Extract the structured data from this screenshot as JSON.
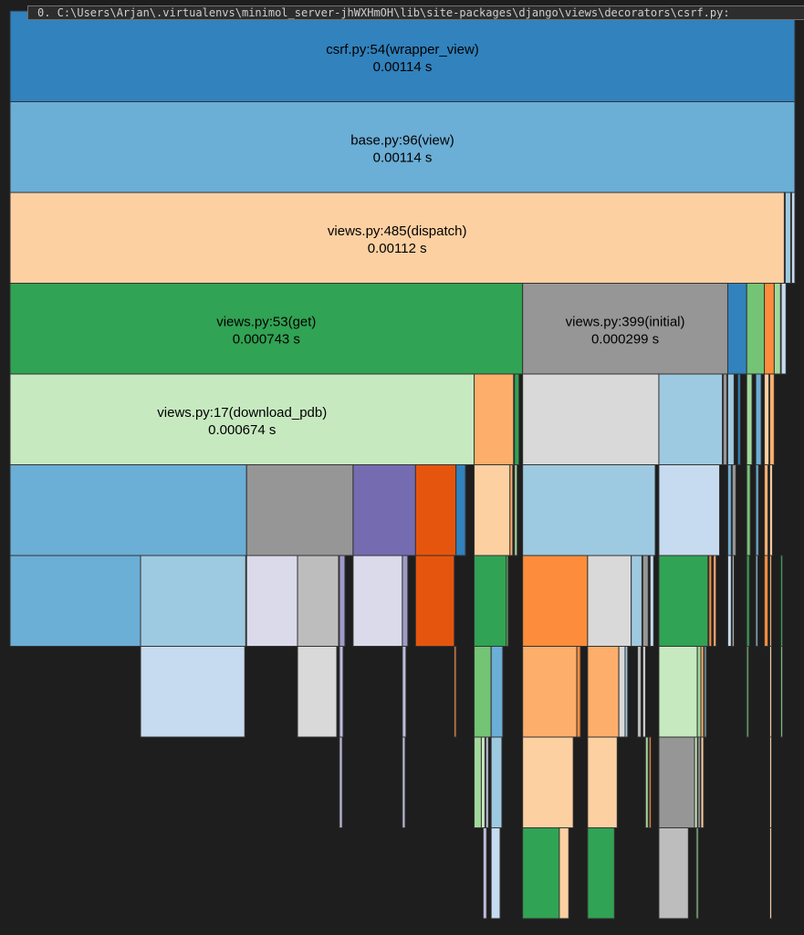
{
  "path_bar": {
    "text": "0. C:\\Users\\Arjan\\.virtualenvs\\minimol_server-jhWXHmOH\\lib\\site-packages\\django\\views\\decorators\\csrf.py:"
  },
  "colors": {
    "background": "#1e1e1e",
    "border": "#333333"
  },
  "chart_data": {
    "type": "icicle",
    "unit": "s",
    "levels": [
      [
        {
          "start": 0,
          "end": 1,
          "name": "csrf.py:54(wrapper_view)",
          "value": "0.00114 s",
          "color": "#3182bd"
        }
      ],
      [
        {
          "start": 0,
          "end": 1,
          "name": "base.py:96(view)",
          "value": "0.00114 s",
          "color": "#6baed6"
        }
      ],
      [
        {
          "start": 0,
          "end": 0.9865,
          "name": "views.py:485(dispatch)",
          "value": "0.00112 s",
          "color": "#fdd0a2"
        },
        {
          "start": 0.9877,
          "end": 0.9947,
          "color": "#9ecae1"
        },
        {
          "start": 0.9958,
          "end": 1,
          "color": "#c6dbef"
        }
      ],
      [
        {
          "start": 0,
          "end": 0.6531,
          "name": "views.py:53(get)",
          "value": "0.000743 s",
          "color": "#31a354"
        },
        {
          "start": 0.6531,
          "end": 0.9145,
          "name": "views.py:399(initial)",
          "value": "0.000299 s",
          "color": "#969696"
        },
        {
          "start": 0.9145,
          "end": 0.9386,
          "color": "#3182bd"
        },
        {
          "start": 0.9386,
          "end": 0.9611,
          "color": "#74c476"
        },
        {
          "start": 0.9611,
          "end": 0.9737,
          "color": "#fd8d3c"
        },
        {
          "start": 0.9737,
          "end": 0.9817,
          "color": "#a1d99b"
        },
        {
          "start": 0.9826,
          "end": 0.9887,
          "color": "#c6dbef"
        }
      ],
      [
        {
          "start": 0,
          "end": 0.5913,
          "name": "views.py:17(download_pdb)",
          "value": "0.000674 s",
          "color": "#c7e9c0"
        },
        {
          "start": 0.5913,
          "end": 0.6416,
          "color": "#fdae6b"
        },
        {
          "start": 0.6428,
          "end": 0.6485,
          "color": "#31a354"
        },
        {
          "start": 0.6531,
          "end": 0.8267,
          "color": "#d9d9d9"
        },
        {
          "start": 0.8267,
          "end": 0.9076,
          "color": "#9ecae1"
        },
        {
          "start": 0.9087,
          "end": 0.9134,
          "color": "#969696"
        },
        {
          "start": 0.9145,
          "end": 0.9225,
          "color": "#9ecae1"
        },
        {
          "start": 0.9272,
          "end": 0.9306,
          "color": "#3182bd"
        },
        {
          "start": 0.9386,
          "end": 0.9454,
          "color": "#a1d99b"
        },
        {
          "start": 0.9502,
          "end": 0.9571,
          "color": "#6baed6"
        },
        {
          "start": 0.9611,
          "end": 0.9668,
          "color": "#fdd0a2"
        },
        {
          "start": 0.968,
          "end": 0.9737,
          "color": "#fdae6b"
        }
      ],
      [
        {
          "start": 0,
          "end": 0.3014,
          "color": "#6baed6"
        },
        {
          "start": 0.3014,
          "end": 0.4371,
          "color": "#969696"
        },
        {
          "start": 0.4371,
          "end": 0.5167,
          "color": "#756bb1"
        },
        {
          "start": 0.5167,
          "end": 0.5682,
          "color": "#e6550d"
        },
        {
          "start": 0.5682,
          "end": 0.5803,
          "color": "#3182bd"
        },
        {
          "start": 0.5913,
          "end": 0.637,
          "color": "#fdd0a2"
        },
        {
          "start": 0.637,
          "end": 0.6405,
          "color": "#fdae6b"
        },
        {
          "start": 0.6428,
          "end": 0.6462,
          "color": "#a1d99b"
        },
        {
          "start": 0.6531,
          "end": 0.8221,
          "color": "#9ecae1"
        },
        {
          "start": 0.8267,
          "end": 0.9041,
          "color": "#c6dbef"
        },
        {
          "start": 0.9145,
          "end": 0.919,
          "color": "#6baed6"
        },
        {
          "start": 0.9202,
          "end": 0.9249,
          "color": "#969696"
        },
        {
          "start": 0.9386,
          "end": 0.9432,
          "color": "#74c476"
        },
        {
          "start": 0.9502,
          "end": 0.9537,
          "color": "#6baed6"
        },
        {
          "start": 0.9611,
          "end": 0.9657,
          "color": "#fdae6b"
        },
        {
          "start": 0.968,
          "end": 0.9714,
          "color": "#fdd0a2"
        }
      ],
      [
        {
          "start": 0,
          "end": 0.1663,
          "color": "#6baed6"
        },
        {
          "start": 0.1663,
          "end": 0.3003,
          "color": "#9ecae1"
        },
        {
          "start": 0.3014,
          "end": 0.3663,
          "color": "#dadaeb"
        },
        {
          "start": 0.3663,
          "end": 0.4186,
          "color": "#bdbdbd"
        },
        {
          "start": 0.4197,
          "end": 0.4267,
          "color": "#9e9ac8"
        },
        {
          "start": 0.4371,
          "end": 0.4999,
          "color": "#dadaeb"
        },
        {
          "start": 0.4999,
          "end": 0.5068,
          "color": "#9e9ac8"
        },
        {
          "start": 0.5167,
          "end": 0.566,
          "color": "#e6550d"
        },
        {
          "start": 0.5913,
          "end": 0.6324,
          "color": "#31a354"
        },
        {
          "start": 0.6324,
          "end": 0.6347,
          "color": "#74c476"
        },
        {
          "start": 0.6531,
          "end": 0.7359,
          "color": "#fd8d3c"
        },
        {
          "start": 0.7359,
          "end": 0.7915,
          "color": "#d9d9d9"
        },
        {
          "start": 0.7915,
          "end": 0.8051,
          "color": "#9ecae1"
        },
        {
          "start": 0.8063,
          "end": 0.8131,
          "color": "#969696"
        },
        {
          "start": 0.8155,
          "end": 0.8201,
          "color": "#c6dbef"
        },
        {
          "start": 0.8267,
          "end": 0.8893,
          "color": "#31a354"
        },
        {
          "start": 0.8905,
          "end": 0.8939,
          "color": "#fd8d3c"
        },
        {
          "start": 0.8962,
          "end": 0.8996,
          "color": "#fdae6b"
        },
        {
          "start": 0.9145,
          "end": 0.919,
          "color": "#c6dbef"
        },
        {
          "start": 0.9202,
          "end": 0.9225,
          "color": "#bdbdbd"
        },
        {
          "start": 0.9386,
          "end": 0.942,
          "color": "#31a354"
        },
        {
          "start": 0.9502,
          "end": 0.9526,
          "color": "#9ecae1"
        },
        {
          "start": 0.9611,
          "end": 0.9657,
          "color": "#fd8d3c"
        },
        {
          "start": 0.968,
          "end": 0.9703,
          "color": "#fdae6b"
        },
        {
          "start": 0.982,
          "end": 0.9843,
          "color": "#31a354"
        }
      ],
      [
        {
          "start": 0.1663,
          "end": 0.2991,
          "color": "#c6dbef"
        },
        {
          "start": 0.3663,
          "end": 0.4163,
          "color": "#d9d9d9"
        },
        {
          "start": 0.4197,
          "end": 0.4244,
          "color": "#bcbddc"
        },
        {
          "start": 0.4999,
          "end": 0.5045,
          "color": "#bcbddc"
        },
        {
          "start": 0.566,
          "end": 0.5684,
          "color": "#fd8d3c"
        },
        {
          "start": 0.5913,
          "end": 0.613,
          "color": "#74c476"
        },
        {
          "start": 0.613,
          "end": 0.6278,
          "color": "#6baed6"
        },
        {
          "start": 0.6531,
          "end": 0.7222,
          "color": "#fdae6b"
        },
        {
          "start": 0.7222,
          "end": 0.7268,
          "color": "#fd8d3c"
        },
        {
          "start": 0.7359,
          "end": 0.7757,
          "color": "#fdae6b"
        },
        {
          "start": 0.7757,
          "end": 0.7837,
          "color": "#d9d9d9"
        },
        {
          "start": 0.7837,
          "end": 0.787,
          "color": "#9ecae1"
        },
        {
          "start": 0.7995,
          "end": 0.804,
          "color": "#bdbdbd"
        },
        {
          "start": 0.8063,
          "end": 0.8097,
          "color": "#d9d9d9"
        },
        {
          "start": 0.8267,
          "end": 0.8757,
          "color": "#c7e9c0"
        },
        {
          "start": 0.8757,
          "end": 0.8803,
          "color": "#a1d99b"
        },
        {
          "start": 0.8803,
          "end": 0.8837,
          "color": "#fdae6b"
        },
        {
          "start": 0.8849,
          "end": 0.8871,
          "color": "#9ecae1"
        },
        {
          "start": 0.9386,
          "end": 0.9409,
          "color": "#74c476"
        },
        {
          "start": 0.968,
          "end": 0.9703,
          "color": "#fdd0a2"
        },
        {
          "start": 0.982,
          "end": 0.9843,
          "color": "#74c476"
        }
      ],
      [
        {
          "start": 0.4197,
          "end": 0.4233,
          "color": "#bcbddc"
        },
        {
          "start": 0.4999,
          "end": 0.5034,
          "color": "#bcbddc"
        },
        {
          "start": 0.5913,
          "end": 0.6005,
          "color": "#a1d99b"
        },
        {
          "start": 0.6005,
          "end": 0.6051,
          "color": "#c7e9c0"
        },
        {
          "start": 0.6062,
          "end": 0.6096,
          "color": "#bcbddc"
        },
        {
          "start": 0.613,
          "end": 0.6267,
          "color": "#9ecae1"
        },
        {
          "start": 0.6531,
          "end": 0.7176,
          "color": "#fdd0a2"
        },
        {
          "start": 0.7359,
          "end": 0.7736,
          "color": "#fdd0a2"
        },
        {
          "start": 0.8097,
          "end": 0.8131,
          "color": "#a1d99b"
        },
        {
          "start": 0.8143,
          "end": 0.8167,
          "color": "#fd8d3c"
        },
        {
          "start": 0.8267,
          "end": 0.8722,
          "color": "#969696"
        },
        {
          "start": 0.8722,
          "end": 0.8757,
          "color": "#c7e9c0"
        },
        {
          "start": 0.8768,
          "end": 0.8791,
          "color": "#d9d9d9"
        },
        {
          "start": 0.8803,
          "end": 0.8837,
          "color": "#fdd0a2"
        },
        {
          "start": 0.968,
          "end": 0.9703,
          "color": "#fdd0a2"
        }
      ],
      [
        {
          "start": 0.6028,
          "end": 0.6073,
          "color": "#bcbddc"
        },
        {
          "start": 0.613,
          "end": 0.6244,
          "color": "#c6dbef"
        },
        {
          "start": 0.6531,
          "end": 0.6999,
          "color": "#31a354"
        },
        {
          "start": 0.6999,
          "end": 0.7119,
          "color": "#fdd0a2"
        },
        {
          "start": 0.7359,
          "end": 0.7701,
          "color": "#31a354"
        },
        {
          "start": 0.8267,
          "end": 0.8643,
          "color": "#bdbdbd"
        },
        {
          "start": 0.8745,
          "end": 0.8768,
          "color": "#a1d99b"
        },
        {
          "start": 0.968,
          "end": 0.9703,
          "color": "#fdd0a2"
        }
      ]
    ]
  }
}
